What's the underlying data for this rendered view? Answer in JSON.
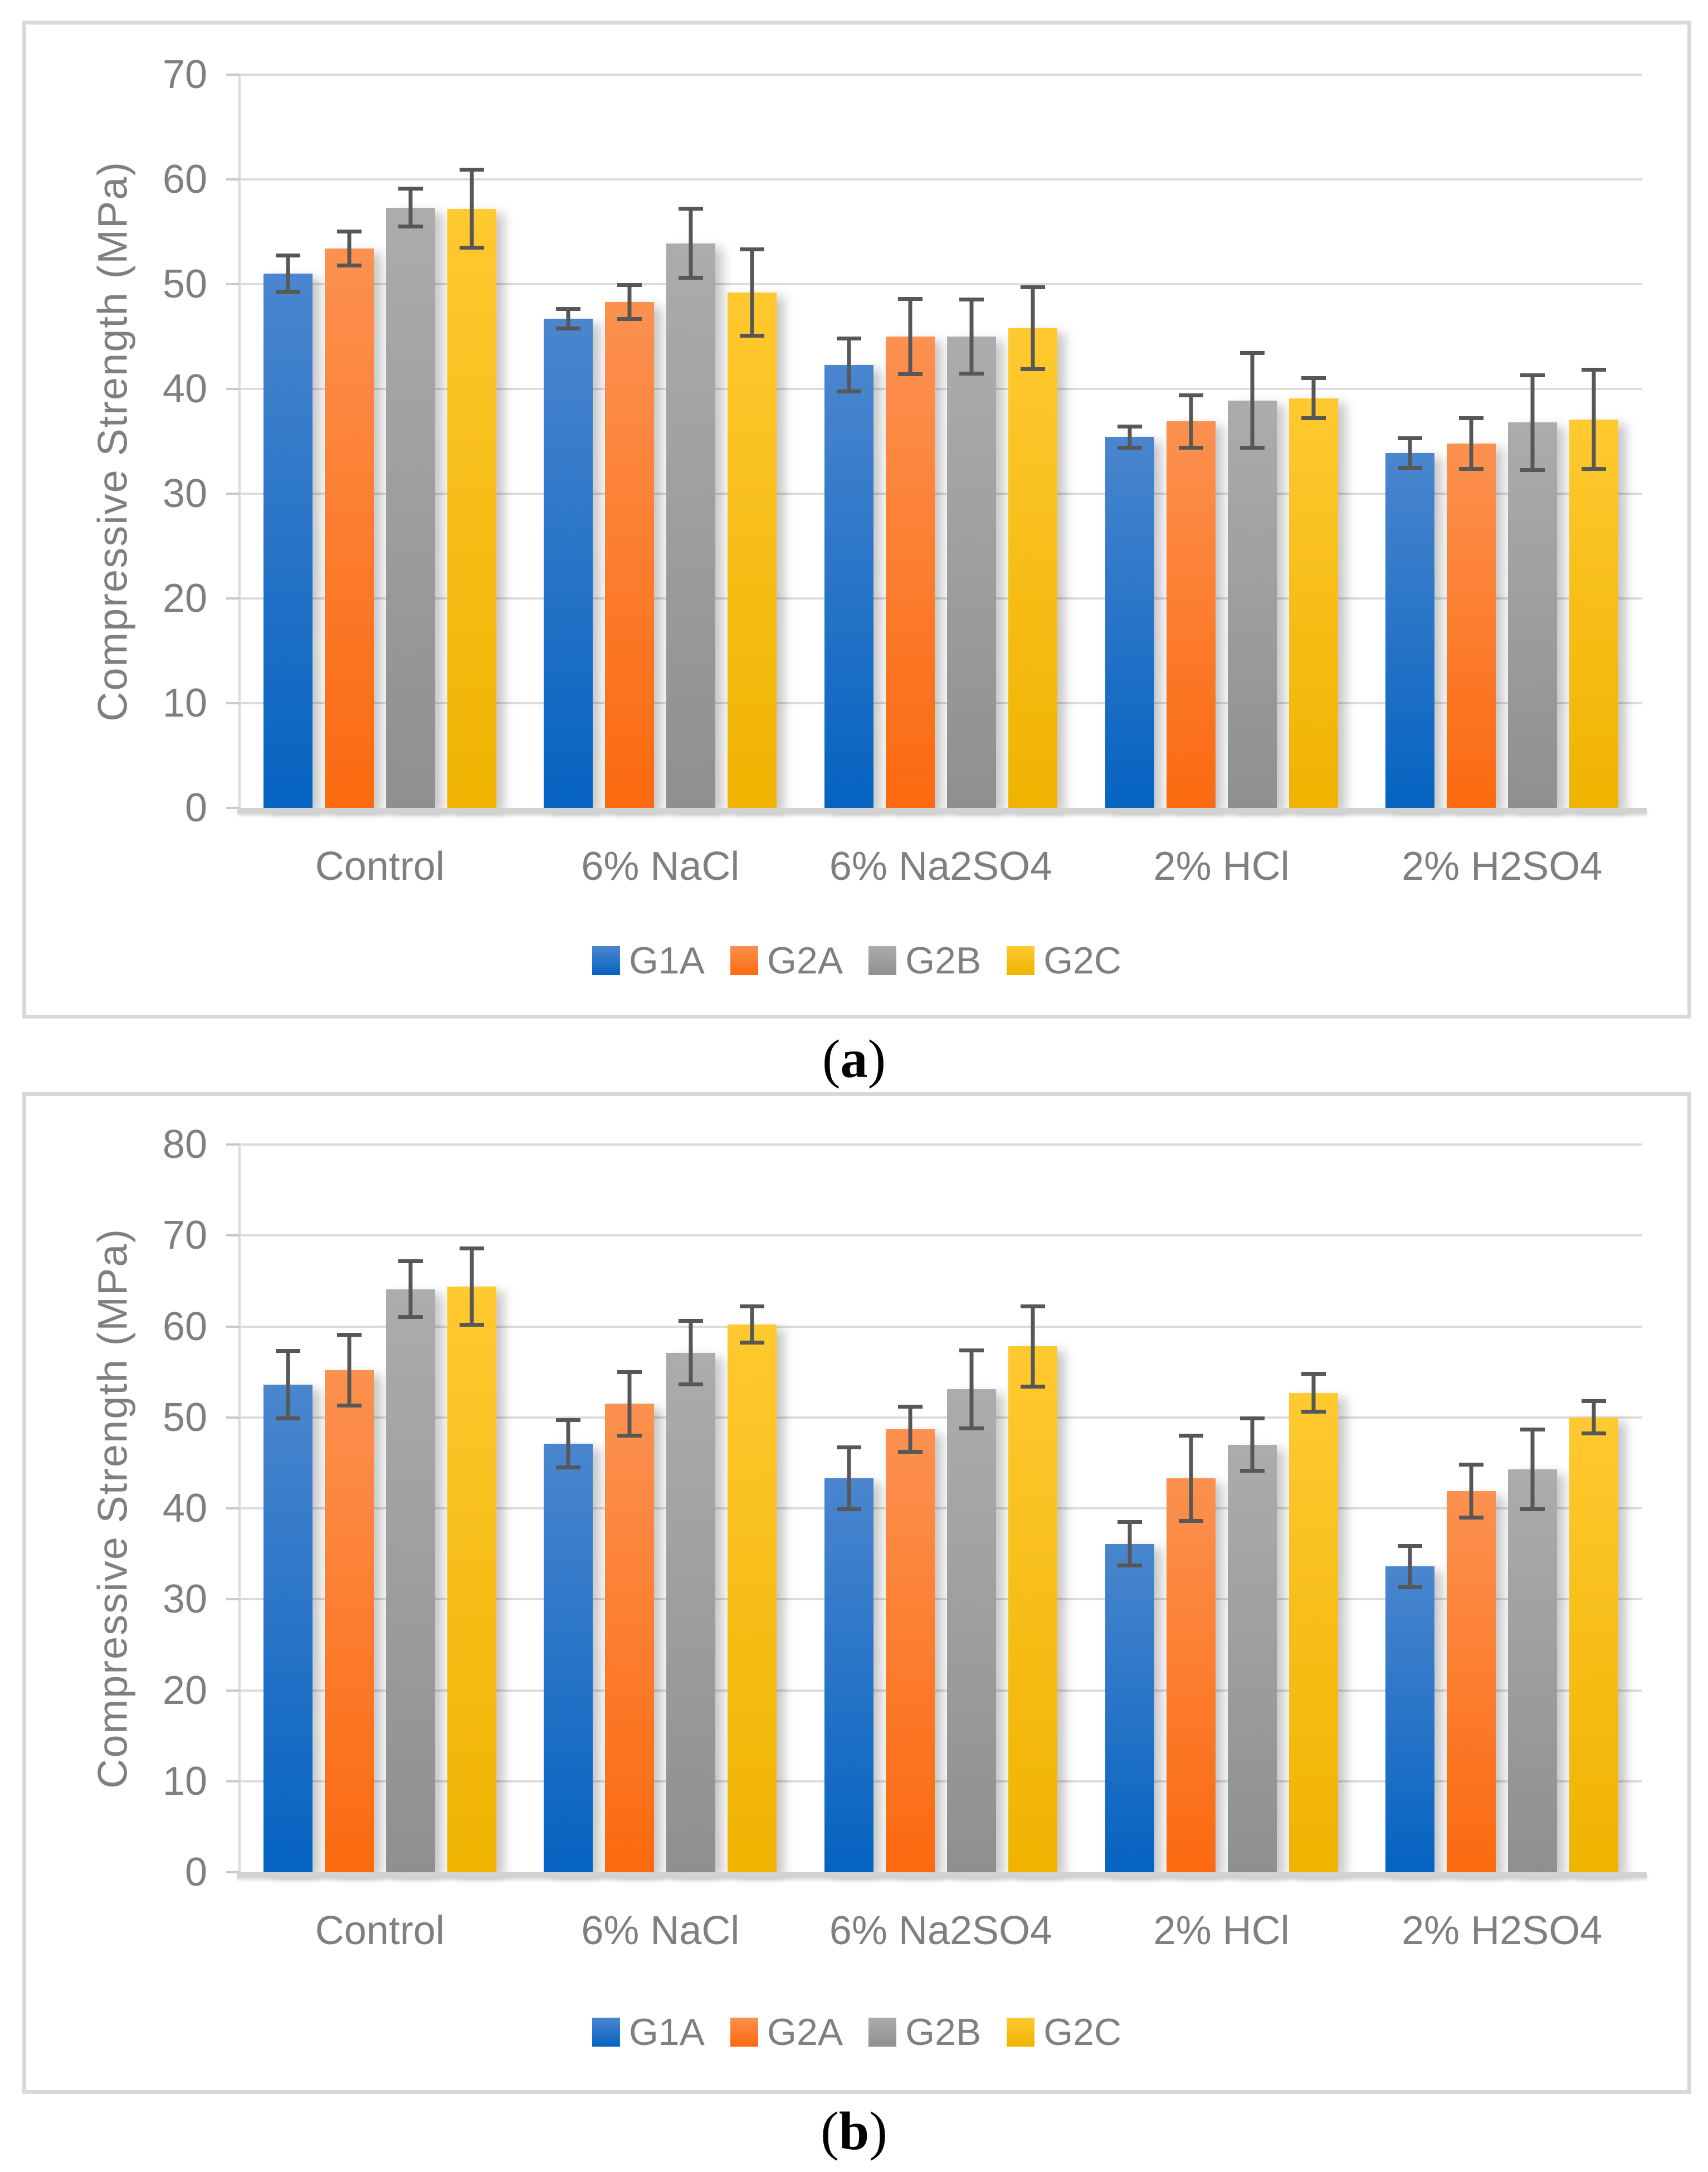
{
  "figure": {
    "panel_labels": [
      {
        "open": "(",
        "letter": "a",
        "close": ")"
      },
      {
        "open": "(",
        "letter": "b",
        "close": ")"
      }
    ]
  },
  "colors": {
    "grid": "#DCDCDC",
    "axis_baseline": "#D2D2D2",
    "panel_border": "#D9D9D9",
    "axis_text": "#7F7F7F",
    "error_bar": "#575757"
  },
  "chart_data": [
    {
      "type": "bar",
      "title": "",
      "xlabel": "",
      "ylabel": "Compressive Strength (MPa)",
      "ylim": [
        0,
        70
      ],
      "ytick_step": 10,
      "grid": true,
      "legend_position": "bottom",
      "categories": [
        "Control",
        "6% NaCl",
        "6% Na2SO4",
        "2% HCl",
        "2% H2SO4"
      ],
      "series": [
        {
          "name": "G1A",
          "color_top": "#4A86CE",
          "color_bottom": "#0563C1",
          "values": [
            51.0,
            46.7,
            42.3,
            35.4,
            33.9
          ],
          "errors": [
            1.9,
            1.1,
            2.7,
            1.2,
            1.6
          ]
        },
        {
          "name": "G2A",
          "color_top": "#FC9150",
          "color_bottom": "#FB6A0F",
          "values": [
            53.4,
            48.3,
            45.0,
            36.9,
            34.8
          ],
          "errors": [
            1.8,
            1.8,
            3.8,
            2.7,
            2.6
          ]
        },
        {
          "name": "G2B",
          "color_top": "#ACACAC",
          "color_bottom": "#8F8F8F",
          "values": [
            57.3,
            53.9,
            45.0,
            38.9,
            36.8
          ],
          "errors": [
            2.0,
            3.5,
            3.7,
            4.7,
            4.7
          ]
        },
        {
          "name": "G2C",
          "color_top": "#FFC930",
          "color_bottom": "#EFB300",
          "values": [
            57.2,
            49.2,
            45.8,
            39.1,
            37.1
          ],
          "errors": [
            3.9,
            4.3,
            4.1,
            2.1,
            4.9
          ]
        }
      ]
    },
    {
      "type": "bar",
      "title": "",
      "xlabel": "",
      "ylabel": "Compressive Strength (MPa)",
      "ylim": [
        0,
        80
      ],
      "ytick_step": 10,
      "grid": true,
      "legend_position": "bottom",
      "categories": [
        "Control",
        "6% NaCl",
        "6% Na2SO4",
        "2% HCl",
        "2% H2SO4"
      ],
      "series": [
        {
          "name": "G1A",
          "color_top": "#4A86CE",
          "color_bottom": "#0563C1",
          "values": [
            53.6,
            47.1,
            43.3,
            36.1,
            33.6
          ],
          "errors": [
            3.9,
            2.8,
            3.6,
            2.6,
            2.5
          ]
        },
        {
          "name": "G2A",
          "color_top": "#FC9150",
          "color_bottom": "#FB6A0F",
          "values": [
            55.2,
            51.5,
            48.7,
            43.3,
            41.9
          ],
          "errors": [
            4.1,
            3.7,
            2.7,
            4.9,
            3.1
          ]
        },
        {
          "name": "G2B",
          "color_top": "#ACACAC",
          "color_bottom": "#8F8F8F",
          "values": [
            64.1,
            57.1,
            53.1,
            47.0,
            44.3
          ],
          "errors": [
            3.3,
            3.7,
            4.5,
            3.1,
            4.6
          ]
        },
        {
          "name": "G2C",
          "color_top": "#FFC930",
          "color_bottom": "#EFB300",
          "values": [
            64.4,
            60.2,
            57.8,
            52.7,
            50.0
          ],
          "errors": [
            4.4,
            2.2,
            4.6,
            2.3,
            2.0
          ]
        }
      ]
    }
  ]
}
